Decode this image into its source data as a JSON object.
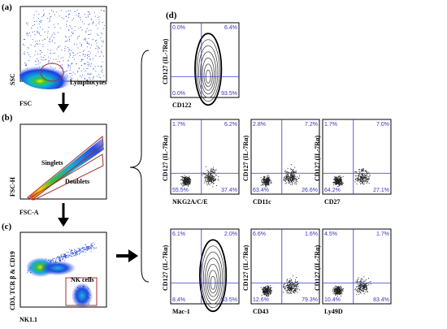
{
  "panels": {
    "a": {
      "letter": "(a)",
      "x_label": "FSC",
      "y_label": "SSC",
      "gate_label": "Lymphocytes"
    },
    "b": {
      "letter": "(b)",
      "x_label": "FSC-A",
      "y_label": "FSC-H",
      "gate_upper": "Singlets",
      "gate_lower": "Doublets"
    },
    "c": {
      "letter": "(c)",
      "x_label": "NK1.1",
      "y_label": "CD3, TCR β & CD19",
      "gate_label": "NK cells"
    },
    "d": {
      "letter": "(d)"
    }
  },
  "colors": {
    "quadrant_line": "#3535c8",
    "gate": "#a03030",
    "percent_text": "#3535c8"
  },
  "quadrant_plots": [
    {
      "id": "cd122",
      "x_label": "CD122",
      "y_label": "CD127 (IL-7Rα)",
      "ul": "0.0%",
      "ur": "6.4%",
      "ll": "0.0%",
      "lr": "93.5%",
      "style": "contour"
    },
    {
      "id": "nkg2a",
      "x_label": "NKG2A/C/E",
      "y_label": "CD127 (IL-7Rα)",
      "ul": "1.7%",
      "ur": "6.2%",
      "ll": "55.5%",
      "lr": "37.4%",
      "style": "dots"
    },
    {
      "id": "cd11c",
      "x_label": "CD11c",
      "y_label": "CD127 (IL-7Rα)",
      "ul": "2.8%",
      "ur": "7.2%",
      "ll": "63.4%",
      "lr": "26.6%",
      "style": "dots"
    },
    {
      "id": "cd27",
      "x_label": "CD27",
      "y_label": "CD127 (IL-7Rα)",
      "ul": "1.7%",
      "ur": "7.0%",
      "ll": "64.2%",
      "lr": "27.1%",
      "style": "dots"
    },
    {
      "id": "mac1",
      "x_label": "Mac-1",
      "y_label": "CD127 (IL-7Rα)",
      "ul": "6.1%",
      "ur": "2.0%",
      "ll": "8.4%",
      "lr": "83.5%",
      "style": "contour"
    },
    {
      "id": "cd43",
      "x_label": "CD43",
      "y_label": "CD127 (IL-7Rα)",
      "ul": "6.6%",
      "ur": "1.6%",
      "ll": "12.6%",
      "lr": "79.3%",
      "style": "dots"
    },
    {
      "id": "ly49d",
      "x_label": "Ly49D",
      "y_label": "CD127 (IL-7Rα)",
      "ul": "4.5%",
      "ur": "1.7%",
      "ll": "10.4%",
      "lr": "83.4%",
      "style": "dots"
    }
  ]
}
